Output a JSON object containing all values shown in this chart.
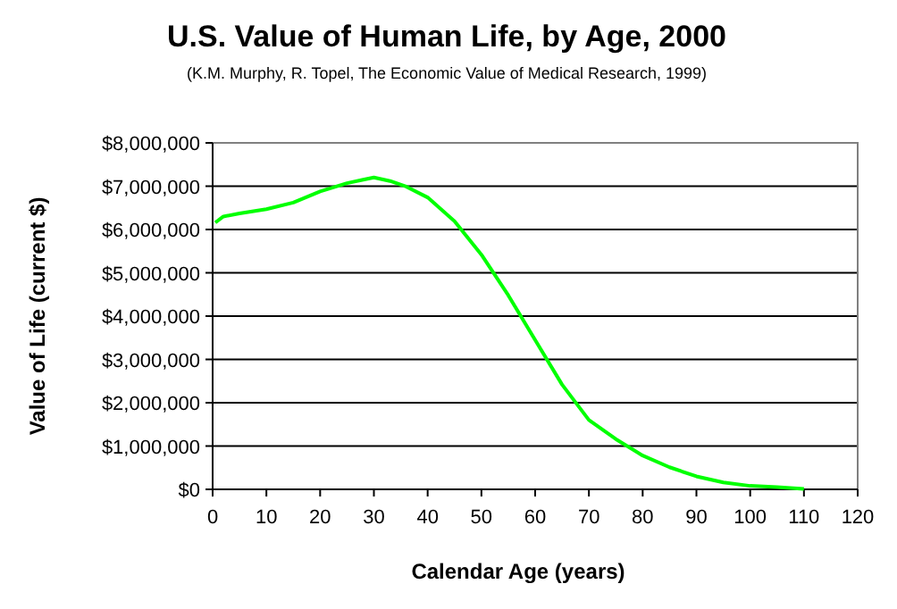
{
  "chart_data": {
    "type": "line",
    "title": "U.S. Value of Human Life, by Age, 2000",
    "subtitle": "(K.M. Murphy, R. Topel, The Economic Value of Medical Research, 1999)",
    "xlabel": "Calendar Age (years)",
    "ylabel": "Value of Life (current $)",
    "x": [
      0.5,
      2,
      5,
      10,
      15,
      20,
      25,
      28,
      30,
      33,
      36,
      40,
      45,
      50,
      55,
      60,
      65,
      70,
      75,
      80,
      85,
      90,
      95,
      100,
      105,
      110
    ],
    "series": [
      {
        "color": "#00ff00",
        "values": [
          6160000,
          6300000,
          6370000,
          6470000,
          6620000,
          6880000,
          7070000,
          7150000,
          7200000,
          7120000,
          6990000,
          6740000,
          6190000,
          5420000,
          4480000,
          3450000,
          2420000,
          1600000,
          1160000,
          780000,
          510000,
          300000,
          160000,
          80000,
          50000,
          10000
        ]
      }
    ],
    "xlim": [
      0,
      120
    ],
    "xticks": [
      0,
      10,
      20,
      30,
      40,
      50,
      60,
      70,
      80,
      90,
      100,
      110,
      120
    ],
    "ylim": [
      0,
      8000000
    ],
    "yticks": [
      {
        "value": 0,
        "label": "$0"
      },
      {
        "value": 1000000,
        "label": "$1,000,000"
      },
      {
        "value": 2000000,
        "label": "$2,000,000"
      },
      {
        "value": 3000000,
        "label": "$3,000,000"
      },
      {
        "value": 4000000,
        "label": "$4,000,000"
      },
      {
        "value": 5000000,
        "label": "$5,000,000"
      },
      {
        "value": 6000000,
        "label": "$6,000,000"
      },
      {
        "value": 7000000,
        "label": "$7,000,000"
      },
      {
        "value": 8000000,
        "label": "$8,000,000"
      }
    ],
    "grid": "y",
    "marker": "none",
    "line_style": "solid"
  }
}
